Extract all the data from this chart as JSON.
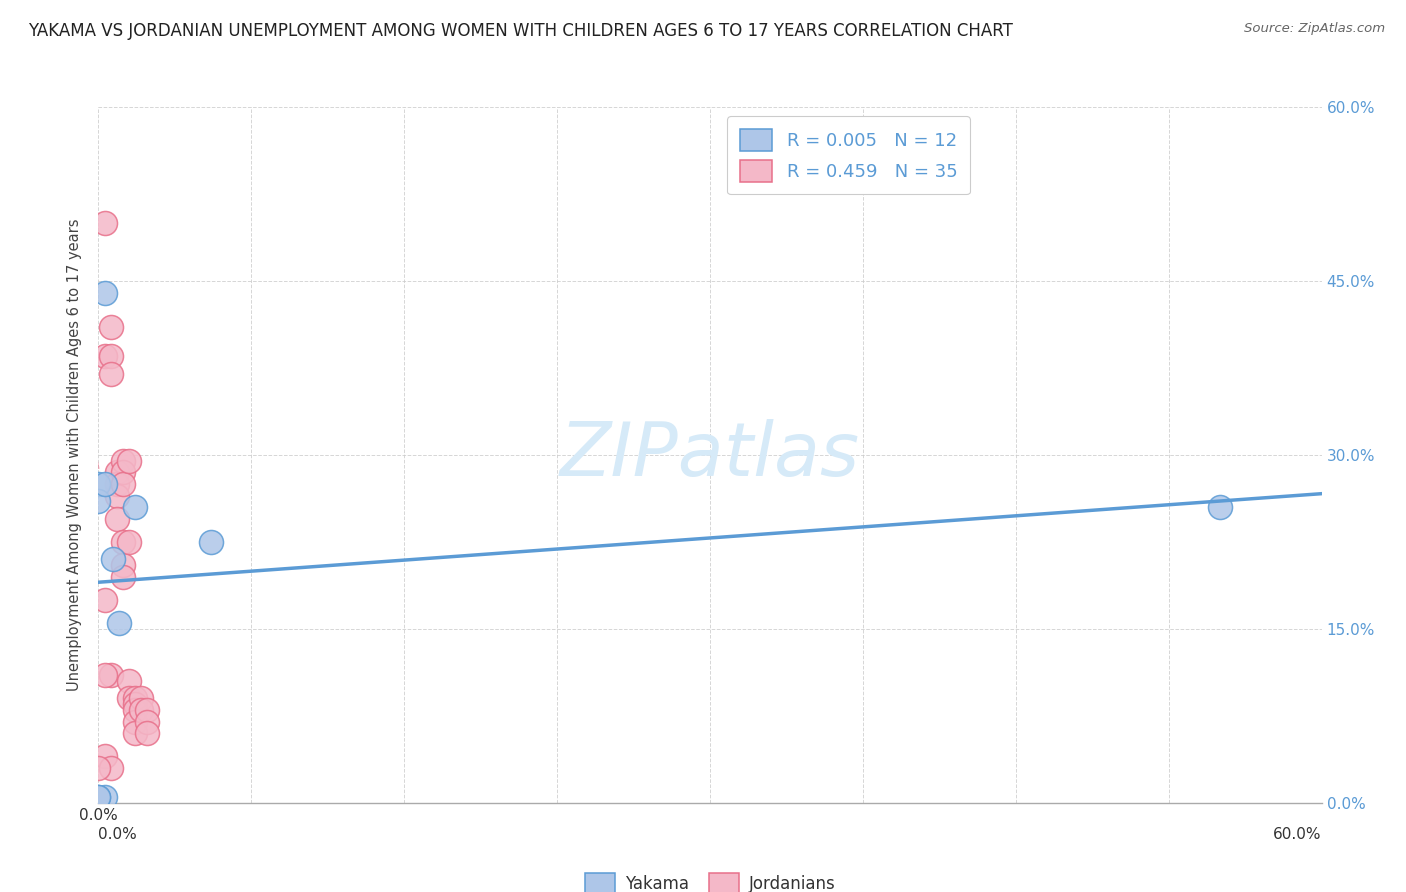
{
  "title": "YAKAMA VS JORDANIAN UNEMPLOYMENT AMONG WOMEN WITH CHILDREN AGES 6 TO 17 YEARS CORRELATION CHART",
  "source": "Source: ZipAtlas.com",
  "ylabel": "Unemployment Among Women with Children Ages 6 to 17 years",
  "xlim": [
    0.0,
    0.6
  ],
  "ylim": [
    0.0,
    0.6
  ],
  "xticks": [
    0.0,
    0.075,
    0.15,
    0.225,
    0.3,
    0.375,
    0.45,
    0.525,
    0.6
  ],
  "yticks": [
    0.0,
    0.15,
    0.3,
    0.45,
    0.6
  ],
  "right_ytick_labels": [
    "60.0%",
    "45.0%",
    "30.0%",
    "15.0%",
    "0.0%"
  ],
  "right_ytick_vals": [
    0.6,
    0.45,
    0.3,
    0.15,
    0.0
  ],
  "background_color": "#ffffff",
  "grid_color": "#cccccc",
  "yakama_color": "#aec6e8",
  "jordanian_color": "#f4b8c8",
  "yakama_edge_color": "#5b9bd5",
  "jordanian_edge_color": "#e8708a",
  "trend_yakama_color": "#5b9bd5",
  "trend_jordanian_color": "#e8708a",
  "watermark_color": "#d6eaf8",
  "legend_r_yakama": "0.005",
  "legend_n_yakama": "12",
  "legend_r_jordanian": "0.459",
  "legend_n_jordanian": "35",
  "yakama_x": [
    0.0,
    0.0,
    0.003,
    0.003,
    0.007,
    0.01,
    0.018,
    0.055,
    0.55,
    0.003,
    0.0,
    0.0
  ],
  "yakama_y": [
    0.275,
    0.26,
    0.44,
    0.275,
    0.21,
    0.155,
    0.255,
    0.225,
    0.255,
    0.005,
    0.005,
    0.005
  ],
  "jordanian_x": [
    0.003,
    0.003,
    0.006,
    0.006,
    0.006,
    0.006,
    0.009,
    0.009,
    0.009,
    0.009,
    0.012,
    0.012,
    0.012,
    0.012,
    0.012,
    0.012,
    0.015,
    0.015,
    0.015,
    0.015,
    0.018,
    0.018,
    0.018,
    0.018,
    0.018,
    0.021,
    0.021,
    0.024,
    0.024,
    0.024,
    0.003,
    0.003,
    0.003,
    0.006,
    0.0
  ],
  "jordanian_y": [
    0.5,
    0.385,
    0.41,
    0.385,
    0.37,
    0.11,
    0.285,
    0.275,
    0.265,
    0.245,
    0.295,
    0.285,
    0.275,
    0.225,
    0.205,
    0.195,
    0.295,
    0.225,
    0.105,
    0.09,
    0.09,
    0.085,
    0.08,
    0.07,
    0.06,
    0.09,
    0.08,
    0.08,
    0.07,
    0.06,
    0.175,
    0.11,
    0.04,
    0.03,
    0.03
  ]
}
